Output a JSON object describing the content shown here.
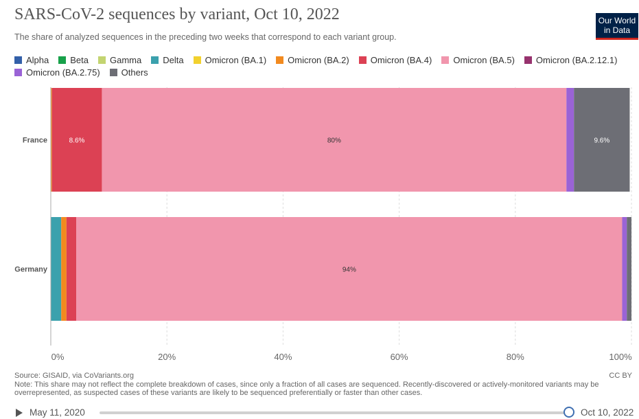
{
  "header": {
    "title": "SARS-CoV-2 sequences by variant, Oct 10, 2022",
    "subtitle": "The share of analyzed sequences in the preceding two weeks that correspond to each variant group.",
    "logo_line1": "Our World",
    "logo_line2": "in Data"
  },
  "chart_data": {
    "type": "bar",
    "orientation": "horizontal",
    "stacked": true,
    "categories": [
      "France",
      "Germany"
    ],
    "xlim": [
      0,
      100
    ],
    "x_ticks": [
      "0%",
      "20%",
      "40%",
      "60%",
      "80%",
      "100%"
    ],
    "grid": true,
    "legend_position": "top",
    "series": [
      {
        "name": "Alpha",
        "color": "#3360a9",
        "values": [
          0,
          0
        ]
      },
      {
        "name": "Beta",
        "color": "#18a14a",
        "values": [
          0,
          0
        ]
      },
      {
        "name": "Gamma",
        "color": "#c3d471",
        "values": [
          0,
          0
        ]
      },
      {
        "name": "Delta",
        "color": "#3ba1ad",
        "values": [
          0,
          1.8
        ]
      },
      {
        "name": "Omicron (BA.1)",
        "color": "#f2d12e",
        "values": [
          0,
          0
        ]
      },
      {
        "name": "Omicron (BA.2)",
        "color": "#f28a1f",
        "values": [
          0.2,
          0.9
        ]
      },
      {
        "name": "Omicron (BA.4)",
        "color": "#dc4154",
        "values": [
          8.6,
          1.7
        ]
      },
      {
        "name": "Omicron (BA.5)",
        "color": "#f196ad",
        "values": [
          80,
          94
        ]
      },
      {
        "name": "Omicron (BA.2.12.1)",
        "color": "#97326e",
        "values": [
          0,
          0
        ]
      },
      {
        "name": "Omicron (BA.2.75)",
        "color": "#9a63d6",
        "values": [
          1.3,
          0.8
        ]
      },
      {
        "name": "Others",
        "color": "#6d6e75",
        "values": [
          9.6,
          0.8
        ]
      }
    ],
    "data_labels": [
      {
        "category": "France",
        "series": "Omicron (BA.4)",
        "text": "8.6%"
      },
      {
        "category": "France",
        "series": "Omicron (BA.5)",
        "text": "80%"
      },
      {
        "category": "France",
        "series": "Others",
        "text": "9.6%"
      },
      {
        "category": "Germany",
        "series": "Omicron (BA.5)",
        "text": "94%"
      }
    ]
  },
  "footer": {
    "source": "Source: GISAID, via CoVariants.org",
    "note": "Note: This share may not reflect the complete breakdown of cases, since only a fraction of all cases are sequenced. Recently-discovered or actively-monitored variants may be overrepresented, as suspected cases of these variants are likely to be sequenced preferentially or faster than other cases.",
    "license": "CC BY"
  },
  "timeline": {
    "start_date": "May 11, 2020",
    "end_date": "Oct 10, 2022",
    "position": 1.0
  }
}
